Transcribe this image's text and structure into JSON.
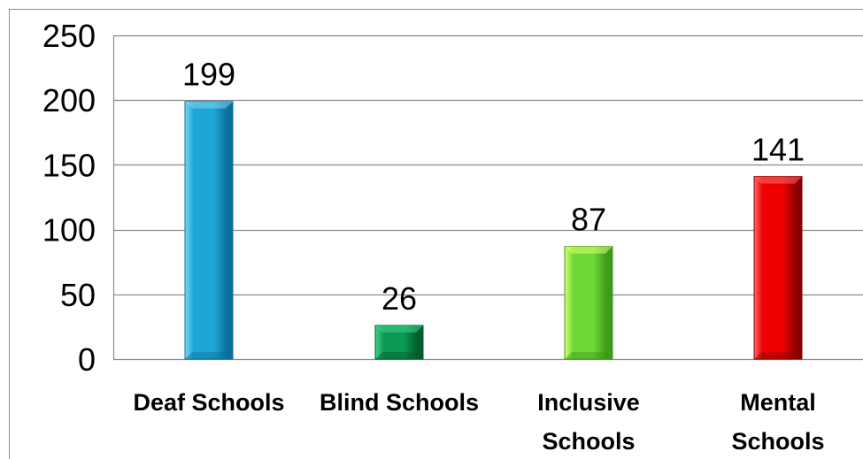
{
  "chart_data": {
    "type": "bar",
    "categories": [
      "Deaf Schools",
      "Blind Schools",
      "Inclusive Schools",
      "Mental Schools"
    ],
    "category_lines": [
      [
        "Deaf Schools"
      ],
      [
        "Blind Schools"
      ],
      [
        "Inclusive",
        "Schools"
      ],
      [
        "Mental",
        "Schools"
      ]
    ],
    "values": [
      199,
      26,
      87,
      141
    ],
    "data_labels": [
      "199",
      "26",
      "87",
      "141"
    ],
    "yticks": [
      "0",
      "50",
      "100",
      "150",
      "200",
      "250"
    ],
    "ylim": [
      0,
      250
    ],
    "grid": true,
    "legend": "none",
    "bar_colors": [
      {
        "light": "#7fd6f2",
        "mid": "#1fa6d8",
        "dark": "#0b6f9c"
      },
      {
        "light": "#40d48a",
        "mid": "#0c9a52",
        "dark": "#045c2e"
      },
      {
        "light": "#d8ff70",
        "mid": "#6fd93a",
        "dark": "#3d9a1a"
      },
      {
        "light": "#ff6a6a",
        "mid": "#ee0000",
        "dark": "#8a0000"
      }
    ],
    "title": "",
    "xlabel": "",
    "ylabel": ""
  }
}
